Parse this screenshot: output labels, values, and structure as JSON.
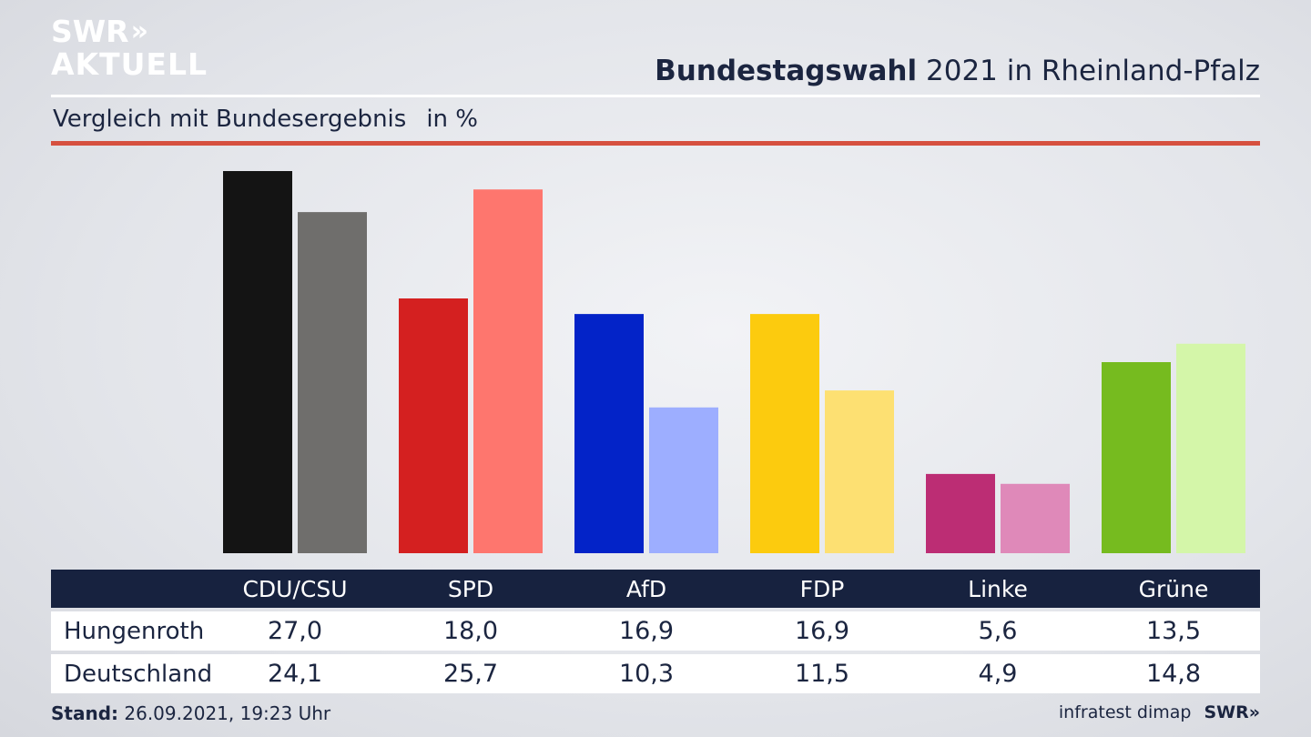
{
  "logo": {
    "line1": "SWR",
    "arrows": "»",
    "line2": "AKTUELL"
  },
  "header": {
    "title_bold": "Bundestagswahl",
    "title_rest": "2021 in Rheinland-Pfalz"
  },
  "subheader": {
    "text": "Vergleich mit Bundesergebnis",
    "unit": "in %"
  },
  "colors": {
    "accent_red": "#d6503f",
    "table_header": "#17223f",
    "text": "#1b2540"
  },
  "chart_data": {
    "type": "bar",
    "categories": [
      "CDU/CSU",
      "SPD",
      "AfD",
      "FDP",
      "Linke",
      "Grüne"
    ],
    "series": [
      {
        "name": "Hungenroth",
        "values": [
          27.0,
          18.0,
          16.9,
          16.9,
          5.6,
          13.5
        ],
        "colors": [
          "#141414",
          "#d42020",
          "#0323c8",
          "#fccb0e",
          "#bc2d74",
          "#76bb1f"
        ]
      },
      {
        "name": "Deutschland",
        "values": [
          24.1,
          25.7,
          10.3,
          11.5,
          4.9,
          14.8
        ],
        "colors": [
          "#6f6e6c",
          "#fe766e",
          "#9daeff",
          "#fde072",
          "#df89b9",
          "#d4f6a9"
        ]
      }
    ],
    "ylim": [
      0,
      27.0
    ],
    "grid": false,
    "legend": "table below chart",
    "value_labels": {
      "Hungenroth": [
        "27,0",
        "18,0",
        "16,9",
        "16,9",
        "5,6",
        "13,5"
      ],
      "Deutschland": [
        "24,1",
        "25,7",
        "10,3",
        "11,5",
        "4,9",
        "14,8"
      ]
    }
  },
  "footer": {
    "stand_label": "Stand:",
    "stand_value": "26.09.2021, 19:23 Uhr",
    "source": "infratest dimap",
    "brand": "SWR»"
  }
}
